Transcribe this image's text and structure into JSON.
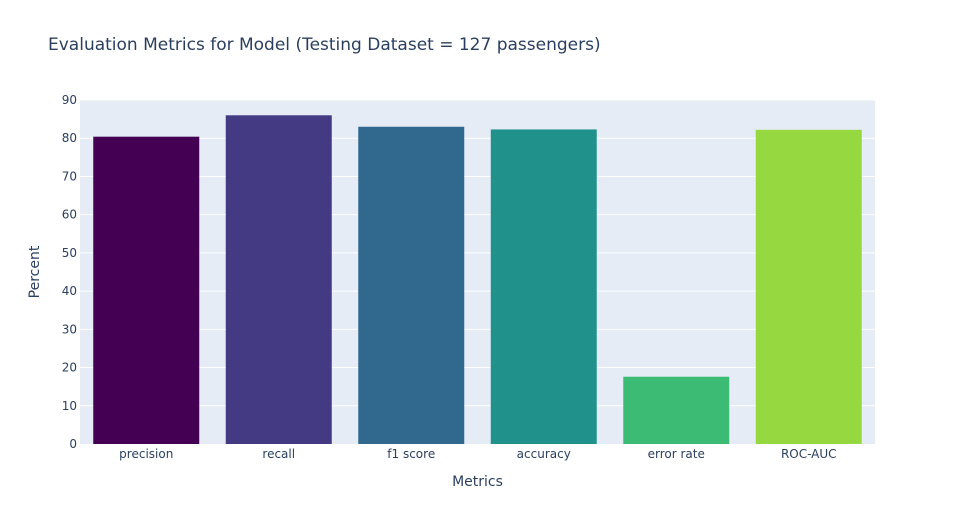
{
  "chart_data": {
    "type": "bar",
    "title": "Evaluation Metrics for Model (Testing Dataset = 127 passengers)",
    "xlabel": "Metrics",
    "ylabel": "Percent",
    "categories": [
      "precision",
      "recall",
      "f1 score",
      "accuracy",
      "error rate",
      "ROC-AUC"
    ],
    "values": [
      80.4,
      86.0,
      83.0,
      82.3,
      17.6,
      82.2
    ],
    "colors": [
      "#440154",
      "#443983",
      "#31688e",
      "#21918c",
      "#3cbb75",
      "#95d840"
    ],
    "ylim": [
      0,
      90
    ],
    "yticks": [
      0,
      10,
      20,
      30,
      40,
      50,
      60,
      70,
      80,
      90
    ],
    "grid": true,
    "background": "#e5ecf6",
    "text_color": "#2a3f5f"
  }
}
